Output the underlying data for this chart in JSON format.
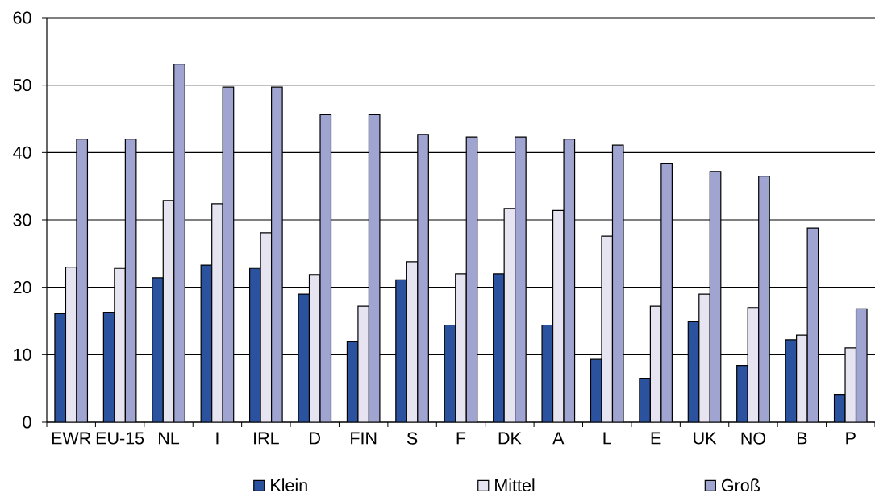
{
  "chart_data": {
    "type": "bar",
    "categories": [
      "EWR",
      "EU-15",
      "NL",
      "I",
      "IRL",
      "D",
      "FIN",
      "S",
      "F",
      "DK",
      "A",
      "L",
      "E",
      "UK",
      "NO",
      "B",
      "P"
    ],
    "series": [
      {
        "name": "Klein",
        "color": "#2a529e",
        "values": [
          16.1,
          16.3,
          21.4,
          23.3,
          22.8,
          19.0,
          12.0,
          21.1,
          14.4,
          22.0,
          14.4,
          9.3,
          6.5,
          14.9,
          8.4,
          12.2,
          4.1
        ]
      },
      {
        "name": "Mittel",
        "color": "#e6e4f0",
        "values": [
          23.0,
          22.8,
          32.9,
          32.4,
          28.1,
          21.9,
          17.2,
          23.8,
          22.0,
          31.7,
          31.4,
          27.6,
          17.2,
          19.0,
          17.0,
          12.9,
          11.0
        ]
      },
      {
        "name": "Groß",
        "color": "#a0a4d0",
        "values": [
          42.0,
          42.0,
          53.1,
          49.7,
          49.7,
          45.6,
          45.6,
          42.7,
          42.3,
          42.3,
          42.0,
          41.1,
          38.4,
          37.2,
          36.5,
          28.8,
          16.8
        ]
      }
    ],
    "ylim": [
      0,
      60
    ],
    "yticks": [
      0,
      10,
      20,
      30,
      40,
      50,
      60
    ],
    "grid": "y",
    "legend": "bottom"
  }
}
